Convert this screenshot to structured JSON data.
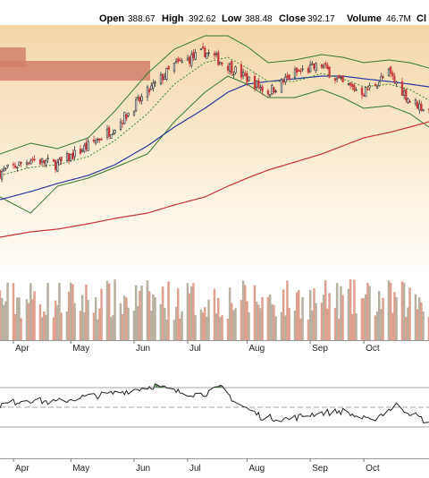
{
  "header": {
    "open_label": "Open",
    "open_value": "388.67",
    "high_label": "High",
    "high_value": "392.62",
    "low_label": "Low",
    "low_value": "388.48",
    "close_label": "Close",
    "close_value": "392.17",
    "volume_label": "Volume",
    "volume_value": "46.7M",
    "truncated_label": "Cl"
  },
  "colors": {
    "up": "#3a3a3a",
    "down": "#c83c3c",
    "sma_short": "#3a8a2a",
    "sma_mid": "#2a3aa0",
    "sma_long": "#c83232",
    "bollinger": "#2f7a2a",
    "volume_up": "#b8b0a0",
    "volume_down": "#e0a090",
    "rsi_line": "#222222",
    "rsi_fill": "#2f7a2a",
    "price_bg_top": "#f3d7a8"
  },
  "chart_data": [
    {
      "type": "candlestick",
      "panel": "price",
      "title": "",
      "x_range": [
        "2024-03-25",
        "2024-11-04"
      ],
      "ylim": [
        310,
        400
      ],
      "months": [
        "Apr",
        "May",
        "Jun",
        "Jul",
        "Aug",
        "Sep",
        "Oct"
      ],
      "month_starts": [
        "2024-04-01",
        "2024-05-01",
        "2024-06-03",
        "2024-07-01",
        "2024-08-01",
        "2024-09-03",
        "2024-10-01"
      ],
      "close_anchor_dates": [
        "2024-03-25",
        "2024-04-10",
        "2024-04-24",
        "2024-05-10",
        "2024-05-24",
        "2024-06-10",
        "2024-06-24",
        "2024-07-10",
        "2024-07-22",
        "2024-08-01",
        "2024-08-12",
        "2024-08-26",
        "2024-09-09",
        "2024-09-20",
        "2024-10-01",
        "2024-10-14",
        "2024-10-25",
        "2024-11-04"
      ],
      "close_anchors": [
        345,
        350,
        348,
        355,
        362,
        375,
        385,
        390,
        385,
        380,
        375,
        382,
        385,
        378,
        375,
        382,
        372,
        368
      ],
      "sma_short_anchors": [
        344,
        347,
        348,
        351,
        357,
        367,
        378,
        386,
        388,
        384,
        379,
        379,
        382,
        380,
        377,
        378,
        376,
        372
      ],
      "sma_mid_anchors": [
        335,
        338,
        341,
        344,
        348,
        355,
        362,
        369,
        375,
        378,
        379,
        380,
        381,
        381,
        380,
        379,
        378,
        377
      ],
      "sma_long_anchors": [
        321,
        323,
        324,
        326,
        328,
        330,
        333,
        336,
        340,
        343,
        346,
        349,
        352,
        355,
        358,
        360,
        362,
        364
      ],
      "bollinger_upper_anchors": [
        352,
        356,
        354,
        358,
        368,
        382,
        391,
        396,
        396,
        392,
        386,
        387,
        389,
        388,
        386,
        387,
        386,
        384
      ],
      "bollinger_lower_anchors": [
        336,
        330,
        340,
        343,
        347,
        352,
        364,
        375,
        381,
        378,
        373,
        373,
        376,
        373,
        369,
        370,
        367,
        362
      ],
      "volume_by_price": [
        {
          "price": 388,
          "relative_volume": 0.06
        },
        {
          "price": 383,
          "relative_volume": 0.35
        }
      ]
    },
    {
      "type": "bar",
      "panel": "volume",
      "title": "",
      "x_range": [
        "2024-03-25",
        "2024-11-04"
      ],
      "note": "daily volume, colored by up/down day"
    },
    {
      "type": "line",
      "panel": "oscillator",
      "title": "",
      "x_range": [
        "2024-03-25",
        "2024-11-04"
      ],
      "ylim": [
        0,
        100
      ],
      "upper_band": 70,
      "lower_band": 30,
      "mid_line": 50,
      "anchor_dates": [
        "2024-03-25",
        "2024-04-08",
        "2024-04-22",
        "2024-05-06",
        "2024-05-20",
        "2024-06-03",
        "2024-06-14",
        "2024-06-24",
        "2024-07-08",
        "2024-07-19",
        "2024-07-26",
        "2024-08-09",
        "2024-08-23",
        "2024-09-06",
        "2024-09-20",
        "2024-10-04",
        "2024-10-18",
        "2024-11-04"
      ],
      "anchors": [
        52,
        58,
        55,
        60,
        63,
        68,
        72,
        66,
        63,
        70,
        55,
        40,
        38,
        44,
        46,
        36,
        52,
        34
      ]
    }
  ]
}
